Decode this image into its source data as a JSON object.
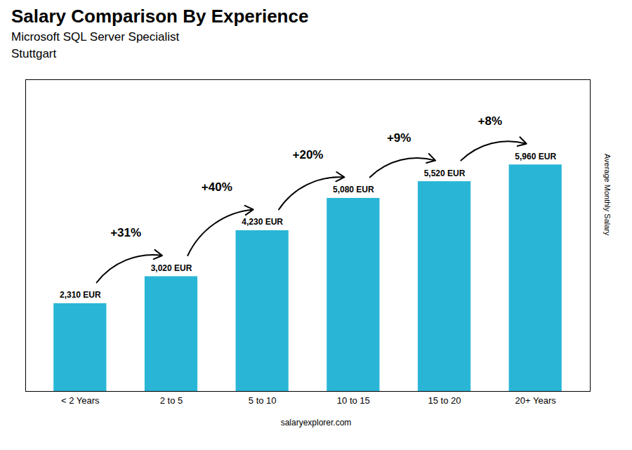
{
  "chart_data": {
    "type": "bar",
    "title": "Salary Comparison By Experience",
    "subtitle": "Microsoft SQL Server Specialist",
    "annotations": [
      "Stuttgart",
      "salaryexplorer.com"
    ],
    "y_label": "Average Monthly Salary",
    "categories": [
      "< 2 Years",
      "2 to 5",
      "5 to 10",
      "10 to 15",
      "15 to 20",
      "20+ Years"
    ],
    "values": [
      2310,
      3020,
      4230,
      5080,
      5520,
      5960
    ],
    "value_labels": [
      "2,310 EUR",
      "3,020 EUR",
      "4,230 EUR",
      "5,080 EUR",
      "5,520 EUR",
      "5,960 EUR"
    ],
    "data_labels": true,
    "pct_labels": [
      "+31%",
      "+40%",
      "+20%",
      "+9%",
      "+8%"
    ],
    "color": "#29b6d6",
    "ylim": [
      0,
      8200
    ],
    "yticks": [],
    "grid": false,
    "tick_labels": "x"
  }
}
